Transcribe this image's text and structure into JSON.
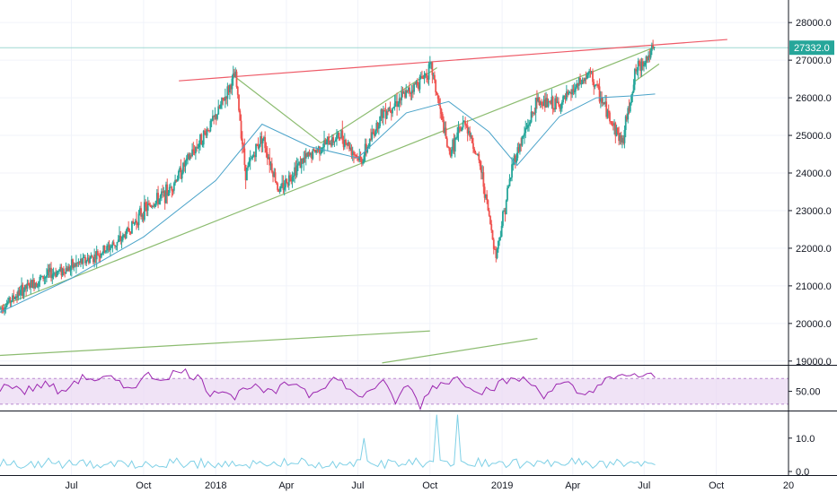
{
  "colors": {
    "up": "#26a69a",
    "down": "#ef5350",
    "ma": "#4aa3c9",
    "trend_green": "#8cbc70",
    "trend_red": "#ee5a67",
    "rsi": "#9c27b0",
    "rsi_band": "#e9d7f2",
    "volume": "#7fd0e6",
    "last_price_bg": "#26a69a"
  },
  "chart_data": [
    {
      "type": "candlestick",
      "title": "",
      "x_axis": {
        "tick_labels": [
          "Jul",
          "Oct",
          "2018",
          "Apr",
          "Jul",
          "Oct",
          "2019",
          "Apr",
          "Jul",
          "Oct",
          "20"
        ],
        "tick_dates": [
          "2017-07-01",
          "2017-10-01",
          "2018-01-01",
          "2018-04-01",
          "2018-07-01",
          "2018-10-01",
          "2019-01-01",
          "2019-04-01",
          "2019-07-01",
          "2019-10-01",
          "2020-01-01"
        ],
        "range": [
          "2017-04-01",
          "2020-01-01"
        ]
      },
      "y_axis": {
        "tick_labels": [
          "19000.0",
          "20000.0",
          "21000.0",
          "22000.0",
          "23000.0",
          "24000.0",
          "25000.0",
          "26000.0",
          "27000.0",
          "28000.0"
        ],
        "range": [
          18900,
          28600
        ]
      },
      "last_price_label": "27332.0",
      "last_price": 27332,
      "price_series": {
        "dates": [
          "2017-04-01",
          "2017-05-01",
          "2017-06-01",
          "2017-07-01",
          "2017-08-01",
          "2017-09-01",
          "2017-10-01",
          "2017-11-01",
          "2017-12-01",
          "2018-01-01",
          "2018-01-26",
          "2018-02-08",
          "2018-03-01",
          "2018-03-23",
          "2018-04-15",
          "2018-05-15",
          "2018-06-10",
          "2018-07-05",
          "2018-08-01",
          "2018-09-01",
          "2018-10-03",
          "2018-10-25",
          "2018-11-15",
          "2018-12-05",
          "2018-12-24",
          "2019-01-15",
          "2019-02-15",
          "2019-03-15",
          "2019-04-23",
          "2019-05-15",
          "2019-06-03",
          "2019-06-20",
          "2019-07-15"
        ],
        "close": [
          20400,
          20900,
          21300,
          21500,
          21800,
          22200,
          23000,
          23500,
          24500,
          25500,
          26600,
          24000,
          25000,
          23500,
          24200,
          24700,
          25000,
          24300,
          25600,
          26100,
          26800,
          24500,
          25400,
          24100,
          21800,
          24300,
          25900,
          25800,
          26650,
          25600,
          24800,
          26700,
          27332
        ]
      },
      "moving_average": {
        "dates": [
          "2017-04-01",
          "2017-07-01",
          "2017-10-01",
          "2018-01-01",
          "2018-03-01",
          "2018-05-01",
          "2018-07-01",
          "2018-09-01",
          "2018-10-25",
          "2018-12-15",
          "2019-01-20",
          "2019-03-15",
          "2019-05-01",
          "2019-06-15",
          "2019-07-15"
        ],
        "values": [
          20300,
          21200,
          22300,
          23800,
          25300,
          24700,
          24400,
          25600,
          25900,
          25100,
          24200,
          25500,
          26000,
          26050,
          26100
        ]
      },
      "trendlines": [
        {
          "color": "red",
          "points": [
            [
              "2017-11-15",
              26450
            ],
            [
              "2019-10-15",
              27550
            ]
          ]
        },
        {
          "color": "green",
          "points": [
            [
              "2017-04-01",
              20450
            ],
            [
              "2019-07-15",
              27350
            ]
          ]
        },
        {
          "color": "green",
          "points": [
            [
              "2018-05-15",
              24800
            ],
            [
              "2018-10-10",
              26800
            ]
          ]
        },
        {
          "color": "green",
          "points": [
            [
              "2018-01-26",
              26550
            ],
            [
              "2018-05-15",
              24800
            ]
          ]
        },
        {
          "color": "green",
          "points": [
            [
              "2019-06-20",
              26450
            ],
            [
              "2019-07-20",
              26900
            ]
          ]
        },
        {
          "color": "green",
          "points": [
            [
              "2017-04-01",
              19150
            ],
            [
              "2018-10-01",
              19800
            ]
          ]
        },
        {
          "color": "green",
          "points": [
            [
              "2018-08-01",
              18950
            ],
            [
              "2019-02-15",
              19600
            ]
          ]
        }
      ]
    },
    {
      "type": "line",
      "title": "",
      "y_axis": {
        "tick_labels": [
          "50.00"
        ],
        "range": [
          20,
          90
        ]
      },
      "band": [
        30,
        70
      ],
      "series": [
        {
          "values": [
            55,
            60,
            50,
            58,
            62,
            45,
            66,
            72,
            68,
            70,
            55,
            62,
            75,
            70,
            78,
            80,
            72,
            48,
            55,
            40,
            60,
            52,
            46,
            58,
            65,
            45,
            58,
            70,
            60,
            38,
            55,
            62,
            35,
            60,
            28,
            58,
            65,
            70,
            60,
            50,
            58,
            66,
            70,
            62,
            45,
            58,
            60,
            42,
            55,
            66,
            70,
            78,
            72,
            74
          ]
        }
      ]
    },
    {
      "type": "line",
      "title": "",
      "y_axis": {
        "tick_labels": [
          "0.0",
          "10.0"
        ],
        "range": [
          0,
          18
        ]
      },
      "series": [
        {
          "values": [
            1.5,
            2,
            1,
            3,
            1.2,
            2.5,
            1,
            2,
            3.5,
            1,
            2,
            1.5,
            2.5,
            1,
            3,
            2,
            1.2,
            4,
            2,
            1,
            3,
            2.5,
            1.5,
            2,
            1,
            3,
            2,
            1.5,
            2.5,
            4,
            2,
            1,
            3,
            2,
            1.5,
            10,
            2,
            1,
            3,
            2,
            4,
            2.5,
            17,
            3,
            17,
            2,
            4,
            1.5,
            3,
            2,
            1,
            2.5,
            3,
            1.5,
            2,
            4,
            2,
            1,
            3,
            2,
            1.5,
            2.5,
            3,
            2
          ]
        }
      ]
    }
  ]
}
